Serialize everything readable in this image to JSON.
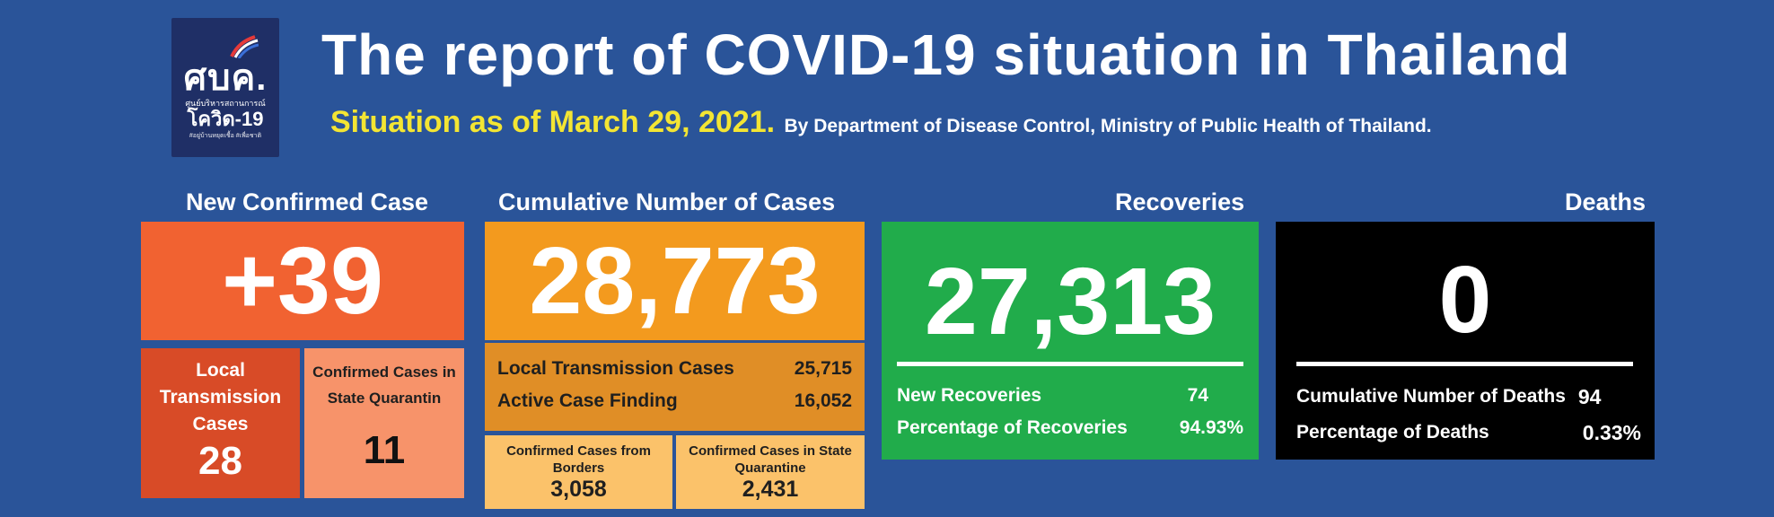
{
  "logo": {
    "main": "ศบค.",
    "sub": "ศูนย์บริหารสถานการณ์",
    "code": "โควิด-19",
    "tagline": "#อยู่บ้านหยุดเชื้อ #เพื่อชาติ"
  },
  "header": {
    "title": "The report of COVID-19 situation in Thailand",
    "date": "Situation as of March 29, 2021.",
    "source": "By Department of Disease Control, Ministry of Public Health of Thailand."
  },
  "new_confirmed": {
    "heading": "New Confirmed Case",
    "value": "+39",
    "local_label": "Local Transmission Cases",
    "local_value": "28",
    "sq_label": "Confirmed Cases in State Quarantin",
    "sq_value": "11"
  },
  "cumulative": {
    "heading": "Cumulative Number of Cases",
    "value": "28,773",
    "local_label": "Local Transmission Cases",
    "local_value": "25,715",
    "acf_label": "Active Case Finding",
    "acf_value": "16,052",
    "borders_label": "Confirmed Cases from Borders",
    "borders_value": "3,058",
    "sq_label": "Confirmed Cases in State Quarantine",
    "sq_value": "2,431"
  },
  "recoveries": {
    "heading": "Recoveries",
    "value": "27,313",
    "new_label": "New Recoveries",
    "new_value": "74",
    "pct_label": "Percentage of Recoveries",
    "pct_value": "94.93%"
  },
  "deaths": {
    "heading": "Deaths",
    "value": "0",
    "cum_label": "Cumulative Number of Deaths",
    "cum_value": "94",
    "pct_label": "Percentage of Deaths",
    "pct_value": "0.33%"
  },
  "colors": {
    "background": "#2a5499",
    "new_case": "#f16231",
    "cumulative": "#f39a1e",
    "recoveries": "#21ac4b",
    "deaths": "#000000",
    "date_text": "#f3e533"
  }
}
